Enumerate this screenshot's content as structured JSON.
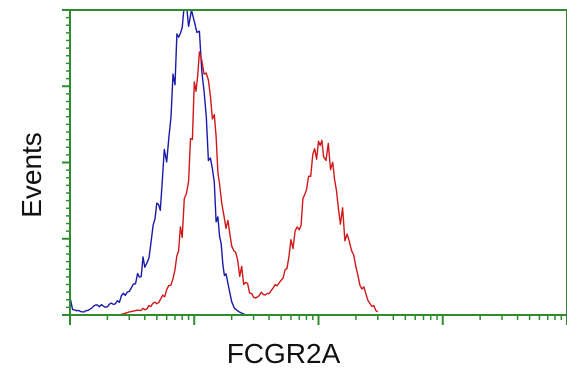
{
  "chart_data": {
    "type": "line",
    "xlabel": "FCGR2A",
    "ylabel": "Events",
    "xscale": "log",
    "x_major_ticks": [
      1,
      10,
      100,
      1000,
      10000
    ],
    "xlim": [
      1,
      10000
    ],
    "ylim": [
      0,
      100
    ],
    "grid": false,
    "frame_color": "#2e8b2e",
    "series": [
      {
        "color": "#1a1aa8",
        "x": [
          1.0,
          1.05,
          1.3,
          1.6,
          2.0,
          2.5,
          3.0,
          3.5,
          4.0,
          4.5,
          5.0,
          5.5,
          6.0,
          6.5,
          7.0,
          7.5,
          8.0,
          8.5,
          9.0,
          9.5,
          10.0,
          10.5,
          11.0,
          11.5,
          12.0,
          12.5,
          13.0,
          14.0,
          15.0,
          16.0,
          17.0,
          18.0,
          19.0,
          20.0,
          21.0,
          23.0,
          26.0,
          30.0
        ],
        "values": [
          6,
          2,
          1,
          3,
          3,
          5,
          8,
          12,
          18,
          24,
          32,
          40,
          55,
          68,
          82,
          90,
          96,
          100,
          97,
          95,
          100,
          98,
          90,
          80,
          70,
          60,
          55,
          45,
          35,
          25,
          18,
          12,
          8,
          4,
          2,
          1,
          0,
          0
        ]
      },
      {
        "color": "#d01818",
        "x": [
          2.5,
          3.0,
          4.0,
          5.0,
          6.0,
          7.0,
          8.0,
          9.0,
          10.0,
          11.0,
          12.0,
          13.0,
          14.0,
          15.0,
          16.0,
          18.0,
          20.0,
          25.0,
          30.0,
          40.0,
          50.0,
          60.0,
          70.0,
          80.0,
          90.0,
          100.0,
          110.0,
          120.0,
          130.0,
          150.0,
          170.0,
          200.0,
          250.0,
          300.0
        ],
        "values": [
          0,
          1,
          2,
          4,
          8,
          15,
          28,
          48,
          70,
          80,
          82,
          75,
          68,
          55,
          42,
          30,
          22,
          12,
          6,
          7,
          12,
          22,
          32,
          45,
          52,
          58,
          55,
          50,
          45,
          35,
          25,
          15,
          5,
          1
        ]
      }
    ]
  }
}
